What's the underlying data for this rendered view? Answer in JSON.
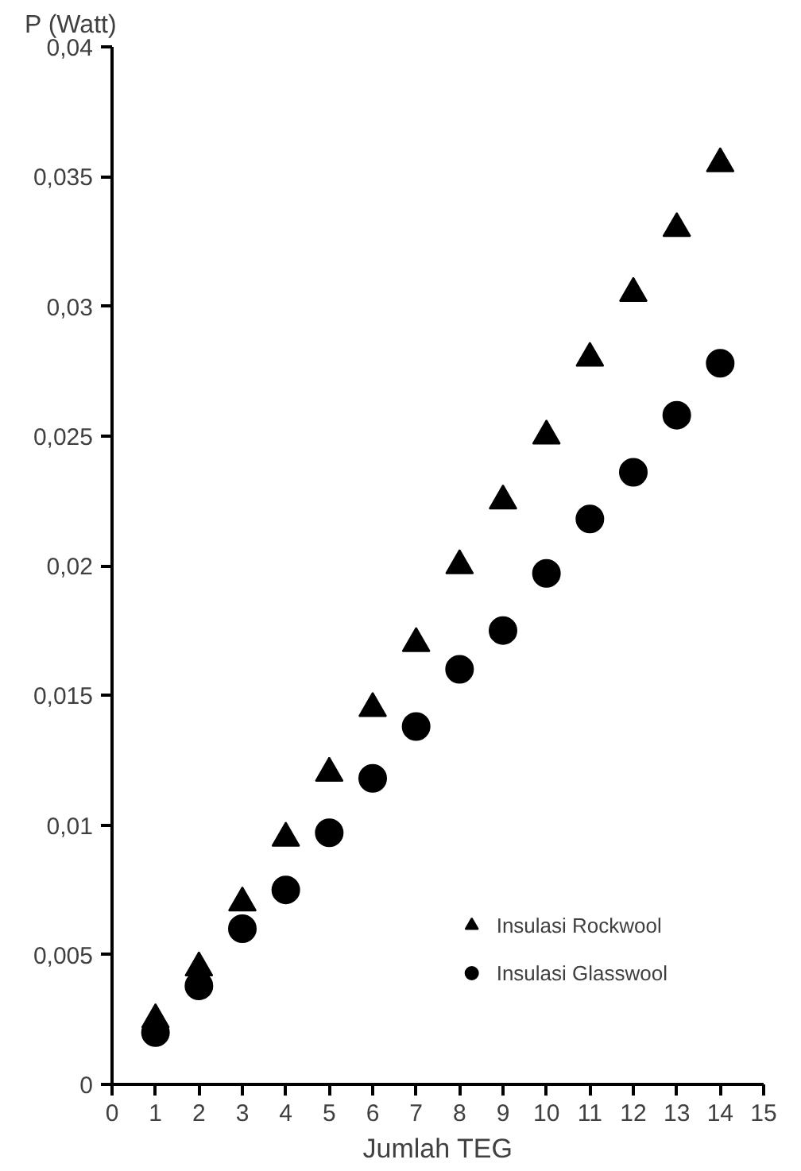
{
  "chart_data": {
    "type": "scatter",
    "xlabel": "Jumlah TEG",
    "ylabel": "P (Watt)",
    "x": [
      1,
      2,
      3,
      4,
      5,
      6,
      7,
      8,
      9,
      10,
      11,
      12,
      13,
      14
    ],
    "series": [
      {
        "name": "Insulasi Rockwool",
        "color": "#000000",
        "marker": "triangle",
        "values": [
          0.0025,
          0.0045,
          0.007,
          0.0095,
          0.012,
          0.0145,
          0.017,
          0.02,
          0.0225,
          0.025,
          0.028,
          0.0305,
          0.033,
          0.0355
        ]
      },
      {
        "name": "Insulasi Glasswool",
        "color": "#000000",
        "marker": "circle",
        "values": [
          0.002,
          0.0038,
          0.006,
          0.0075,
          0.0097,
          0.0118,
          0.0138,
          0.016,
          0.0175,
          0.0197,
          0.0218,
          0.0236,
          0.0258,
          0.0278
        ]
      }
    ],
    "xlim": [
      0,
      15
    ],
    "xticks": [
      0,
      1,
      2,
      3,
      4,
      5,
      6,
      7,
      8,
      9,
      10,
      11,
      12,
      13,
      14,
      15
    ],
    "ylim": [
      0,
      0.04
    ],
    "yticks": [
      {
        "value": 0,
        "label": "0"
      },
      {
        "value": 0.005,
        "label": "0,005"
      },
      {
        "value": 0.01,
        "label": "0,01"
      },
      {
        "value": 0.015,
        "label": "0,015"
      },
      {
        "value": 0.02,
        "label": "0,02"
      },
      {
        "value": 0.025,
        "label": "0,025"
      },
      {
        "value": 0.03,
        "label": "0,03"
      },
      {
        "value": 0.035,
        "label": "0,035"
      },
      {
        "value": 0.04,
        "label": "0,04"
      }
    ],
    "grid": false,
    "legend": "bottom right"
  }
}
